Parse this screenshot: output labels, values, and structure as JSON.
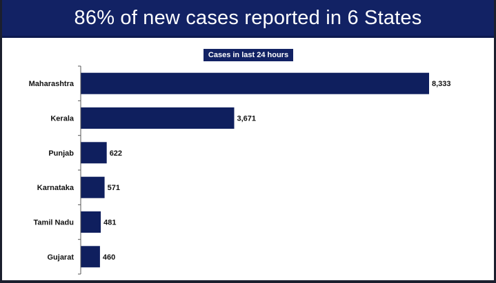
{
  "header": {
    "title": "86% of new cases reported in 6 States"
  },
  "chart_data": {
    "type": "bar",
    "orientation": "horizontal",
    "subtitle": "Cases in last 24 hours",
    "categories": [
      "Maharashtra",
      "Kerala",
      "Punjab",
      "Karnataka",
      "Tamil Nadu",
      "Gujarat"
    ],
    "values": [
      8333,
      3671,
      622,
      571,
      481,
      460
    ],
    "value_labels": [
      "8,333",
      "3,671",
      "622",
      "571",
      "481",
      "460"
    ],
    "xlim": [
      0,
      8333
    ],
    "grid": false,
    "bar_color": "#0f1f5e"
  }
}
